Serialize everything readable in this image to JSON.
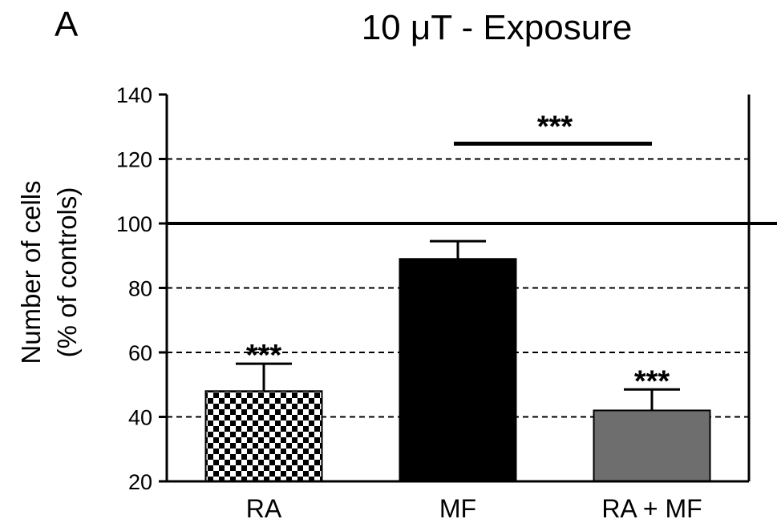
{
  "panel_label": "A",
  "chart_data": {
    "type": "bar",
    "title": "10 μT - Exposure",
    "xlabel": "",
    "ylabel": "Number of cells",
    "ylabel_line2": "(% of controls)",
    "ylim": [
      20,
      140
    ],
    "yticks": [
      20,
      40,
      60,
      80,
      100,
      120,
      140
    ],
    "grid": "dashed horizontal",
    "reference_line": 100,
    "categories": [
      "RA",
      "MF",
      "RA + MF"
    ],
    "values": [
      48,
      89,
      42
    ],
    "errors": [
      8.5,
      5.5,
      6.5
    ],
    "bar_fills": [
      "checkered",
      "#000000",
      "#6e6e6e"
    ],
    "significance": [
      {
        "label": "***",
        "over": "RA"
      },
      {
        "label": "***",
        "over": "RA + MF"
      },
      {
        "label": "***",
        "between": [
          "MF",
          "RA + MF"
        ],
        "at": 125
      }
    ]
  }
}
